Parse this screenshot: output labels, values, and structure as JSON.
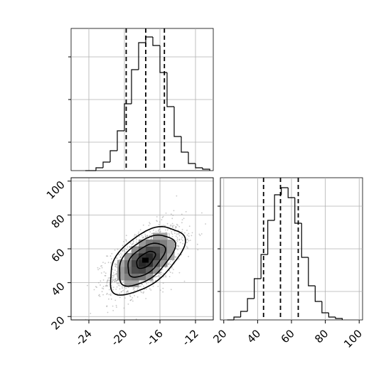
{
  "chart_data": [
    {
      "type": "histogram",
      "panel": "top-left",
      "x_range": [
        -26,
        -10
      ],
      "x_grid": [
        -24,
        -20,
        -16,
        -12
      ],
      "y_ticks": [
        0.2,
        0.5,
        0.8
      ],
      "bins": [
        {
          "x0": -24.4,
          "x1": -23.2,
          "v": 0.0
        },
        {
          "x0": -23.2,
          "x1": -22.4,
          "v": 0.02
        },
        {
          "x0": -22.4,
          "x1": -21.6,
          "v": 0.06
        },
        {
          "x0": -21.6,
          "x1": -20.8,
          "v": 0.14
        },
        {
          "x0": -20.8,
          "x1": -20.0,
          "v": 0.28
        },
        {
          "x0": -20.0,
          "x1": -19.2,
          "v": 0.47
        },
        {
          "x0": -19.2,
          "x1": -18.4,
          "v": 0.71
        },
        {
          "x0": -18.4,
          "x1": -17.6,
          "v": 0.9
        },
        {
          "x0": -17.6,
          "x1": -16.8,
          "v": 0.94
        },
        {
          "x0": -16.8,
          "x1": -16.0,
          "v": 0.88
        },
        {
          "x0": -16.0,
          "x1": -15.2,
          "v": 0.69
        },
        {
          "x0": -15.2,
          "x1": -14.4,
          "v": 0.45
        },
        {
          "x0": -14.4,
          "x1": -13.6,
          "v": 0.24
        },
        {
          "x0": -13.6,
          "x1": -12.8,
          "v": 0.13
        },
        {
          "x0": -12.8,
          "x1": -12.0,
          "v": 0.05
        },
        {
          "x0": -12.0,
          "x1": -11.2,
          "v": 0.02
        },
        {
          "x0": -11.2,
          "x1": -10.4,
          "v": 0.01
        }
      ],
      "quantiles": [
        -19.8,
        -17.6,
        -15.5
      ]
    },
    {
      "type": "histogram",
      "panel": "bottom-right",
      "x_range": [
        18,
        102
      ],
      "x_ticks": [
        20,
        40,
        60,
        80,
        100
      ],
      "y_ticks": [
        0.2,
        0.5,
        0.8
      ],
      "bins": [
        {
          "x0": 22,
          "x1": 26,
          "v": 0.0
        },
        {
          "x0": 26,
          "x1": 30,
          "v": 0.02
        },
        {
          "x0": 30,
          "x1": 34,
          "v": 0.06
        },
        {
          "x0": 34,
          "x1": 38,
          "v": 0.15
        },
        {
          "x0": 38,
          "x1": 42,
          "v": 0.29
        },
        {
          "x0": 42,
          "x1": 46,
          "v": 0.46
        },
        {
          "x0": 46,
          "x1": 50,
          "v": 0.7
        },
        {
          "x0": 50,
          "x1": 54,
          "v": 0.88
        },
        {
          "x0": 54,
          "x1": 58,
          "v": 0.93
        },
        {
          "x0": 58,
          "x1": 62,
          "v": 0.86
        },
        {
          "x0": 62,
          "x1": 66,
          "v": 0.68
        },
        {
          "x0": 66,
          "x1": 70,
          "v": 0.44
        },
        {
          "x0": 70,
          "x1": 74,
          "v": 0.24
        },
        {
          "x0": 74,
          "x1": 78,
          "v": 0.13
        },
        {
          "x0": 78,
          "x1": 82,
          "v": 0.05
        },
        {
          "x0": 82,
          "x1": 86,
          "v": 0.02
        },
        {
          "x0": 86,
          "x1": 90,
          "v": 0.01
        }
      ],
      "quantiles": [
        43.5,
        53.5,
        64.0
      ]
    },
    {
      "type": "scatter",
      "panel": "bottom-left",
      "x_range": [
        -26,
        -10
      ],
      "y_range": [
        18,
        102
      ],
      "x_ticks": [
        -24,
        -20,
        -16,
        -12
      ],
      "y_ticks": [
        20,
        40,
        60,
        80,
        100
      ],
      "center": [
        -17.6,
        53.5
      ],
      "sigma": [
        2.1,
        10.0
      ],
      "correlation": 0.55,
      "contour_levels_sigma": [
        0.5,
        1.0,
        1.5,
        2.0
      ],
      "n_points": 1600
    }
  ]
}
